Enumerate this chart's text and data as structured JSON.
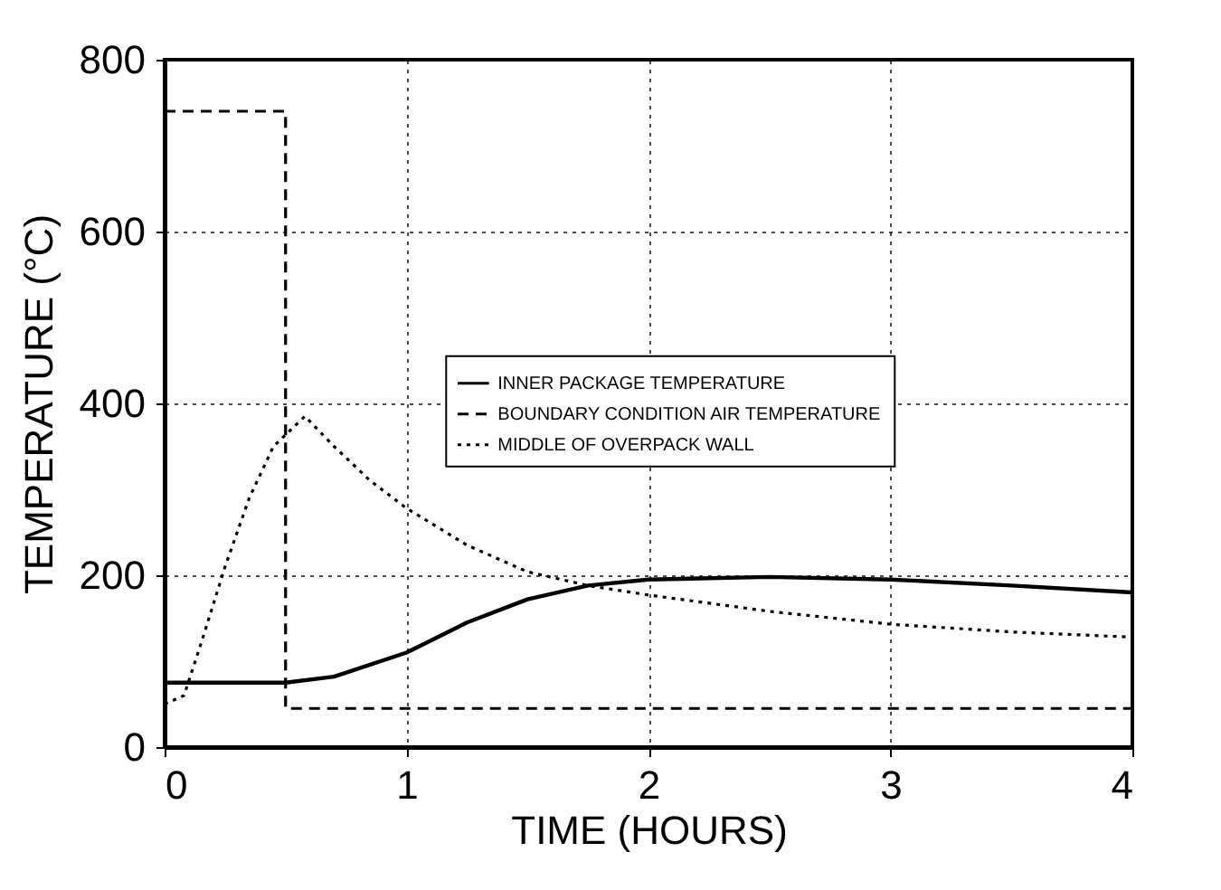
{
  "chart_data": {
    "type": "line",
    "xlabel": "TIME (HOURS)",
    "ylabel": "TEMPERATURE (°C)",
    "xlim": [
      0,
      4
    ],
    "xticks": [
      0,
      1,
      2,
      3,
      4
    ],
    "ylim": [
      0,
      800
    ],
    "yticks": [
      0,
      200,
      400,
      600,
      800
    ],
    "grid": true,
    "legend": "right",
    "series": [
      {
        "name": "INNER PACKAGE TEMPERATURE",
        "color": "#000000",
        "line_style": "solid",
        "x": [
          0,
          0.5,
          0.7,
          1.0,
          1.25,
          1.5,
          1.75,
          2.0,
          2.5,
          3.0,
          3.5,
          4.0
        ],
        "values": [
          75,
          75,
          82,
          110,
          145,
          172,
          188,
          195,
          198,
          195,
          188,
          180
        ]
      },
      {
        "name": "BOUNDARY CONDITION AIR TEMPERATURE",
        "type": "step",
        "color": "#000000",
        "line_style": "dashed",
        "x": [
          0,
          0.5,
          4.0
        ],
        "values": [
          740,
          45,
          45
        ]
      },
      {
        "name": "MIDDLE OF OVERPACK WALL",
        "color": "#000000",
        "line_style": "dotted",
        "x": [
          0,
          0.08,
          0.15,
          0.25,
          0.35,
          0.45,
          0.58,
          0.7,
          0.85,
          1.0,
          1.25,
          1.5,
          1.75,
          2.0,
          2.5,
          3.0,
          3.5,
          4.0
        ],
        "values": [
          50,
          60,
          120,
          210,
          290,
          350,
          385,
          350,
          310,
          278,
          235,
          204,
          188,
          177,
          158,
          143,
          134,
          128
        ]
      }
    ]
  }
}
